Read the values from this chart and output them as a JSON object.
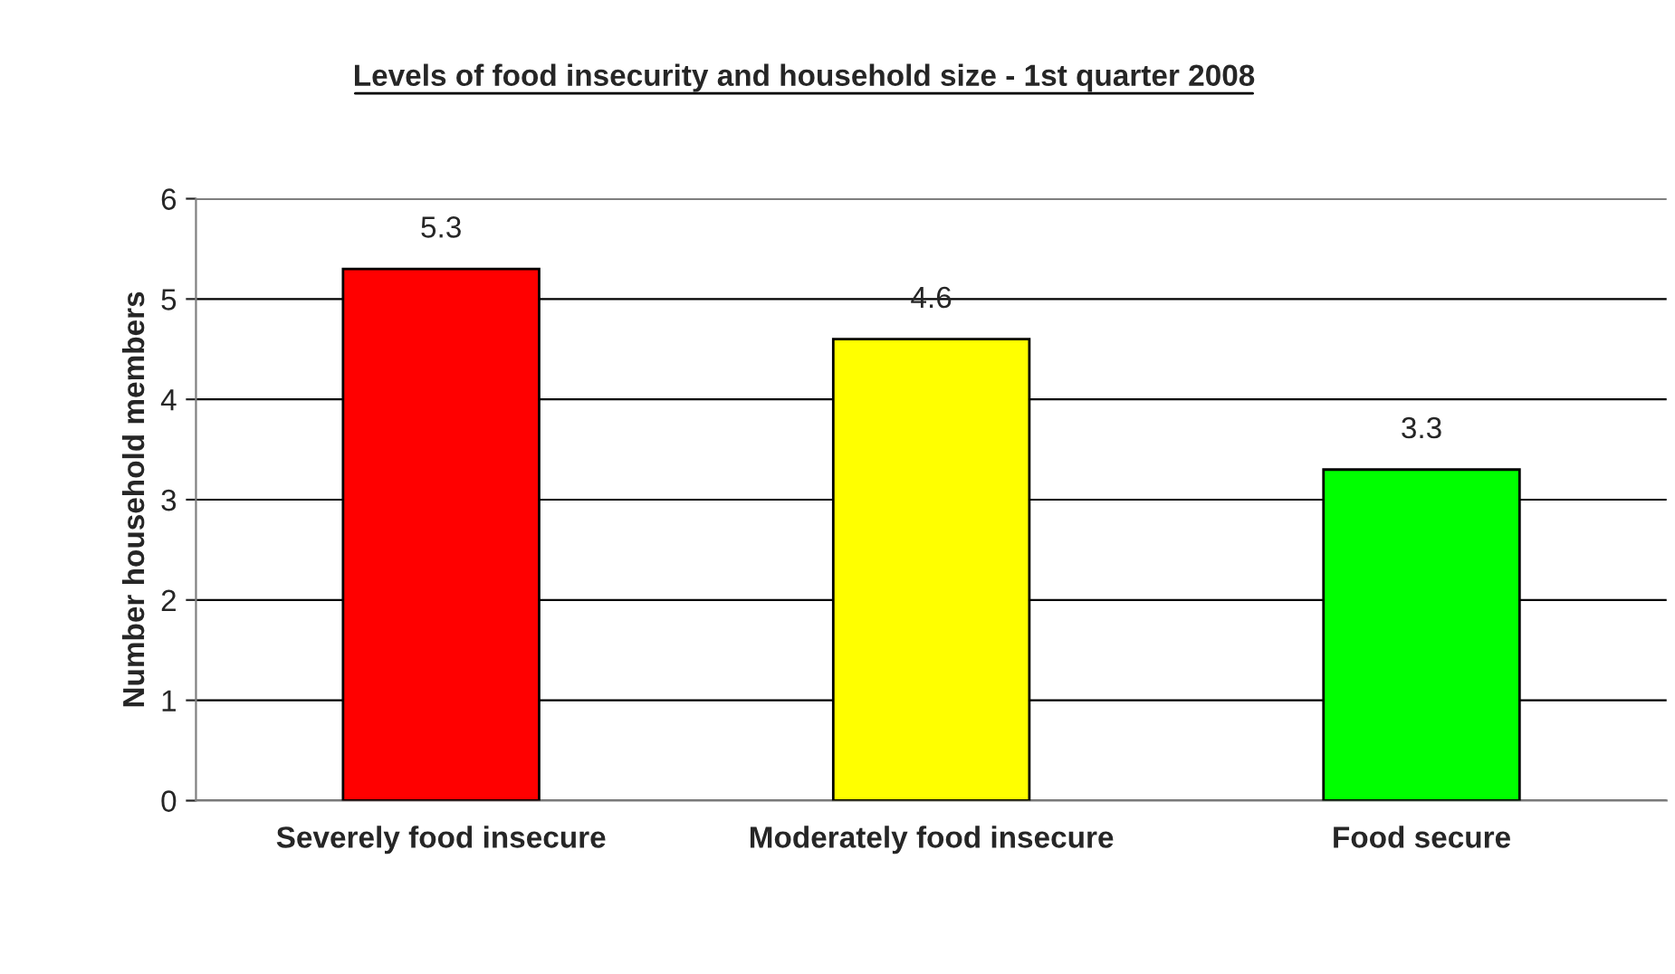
{
  "chart_data": {
    "type": "bar",
    "title": "Levels of food insecurity and household size - 1st quarter 2008",
    "ylabel": "Number household members",
    "categories": [
      "Severely food insecure",
      "Moderately food insecure",
      "Food secure"
    ],
    "values": [
      5.3,
      4.6,
      3.3
    ],
    "colors": [
      "#ff0000",
      "#ffff00",
      "#00ff00"
    ],
    "ylim": [
      0,
      6
    ],
    "yticks": [
      0,
      1,
      2,
      3,
      4,
      5,
      6
    ],
    "grid": "y",
    "data_labels": true
  }
}
